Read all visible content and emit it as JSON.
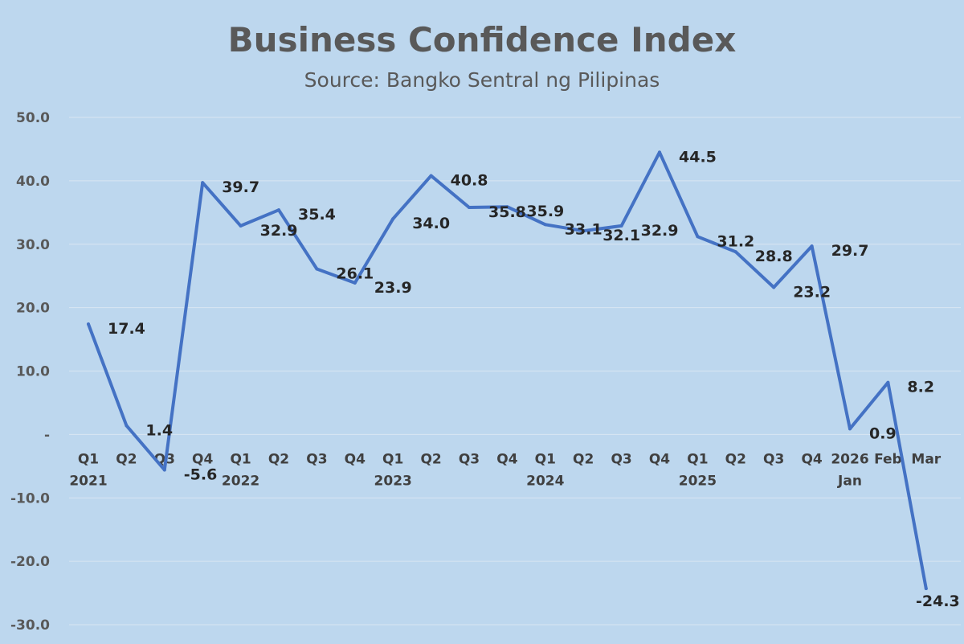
{
  "chart_data": {
    "type": "line",
    "title": "Business Confidence Index",
    "subtitle": "Source: Bangko Sentral ng Pilipinas",
    "xlabel": "",
    "ylabel": "",
    "ylim": [
      -30,
      50
    ],
    "y_ticks": [
      "50.0",
      "40.0",
      "30.0",
      "20.0",
      "10.0",
      "-",
      "-10.0",
      "-20.0",
      "-30.0"
    ],
    "grid": true,
    "legend": "none",
    "categories": [
      {
        "top": "Q1",
        "bottom": "2021"
      },
      {
        "top": "Q2",
        "bottom": ""
      },
      {
        "top": "Q3",
        "bottom": ""
      },
      {
        "top": "Q4",
        "bottom": ""
      },
      {
        "top": "Q1",
        "bottom": "2022"
      },
      {
        "top": "Q2",
        "bottom": ""
      },
      {
        "top": "Q3",
        "bottom": ""
      },
      {
        "top": "Q4",
        "bottom": ""
      },
      {
        "top": "Q1",
        "bottom": "2023"
      },
      {
        "top": "Q2",
        "bottom": ""
      },
      {
        "top": "Q3",
        "bottom": ""
      },
      {
        "top": "Q4",
        "bottom": ""
      },
      {
        "top": "Q1",
        "bottom": "2024"
      },
      {
        "top": "Q2",
        "bottom": ""
      },
      {
        "top": "Q3",
        "bottom": ""
      },
      {
        "top": "Q4",
        "bottom": ""
      },
      {
        "top": "Q1",
        "bottom": "2025"
      },
      {
        "top": "Q2",
        "bottom": ""
      },
      {
        "top": "Q3",
        "bottom": ""
      },
      {
        "top": "Q4",
        "bottom": ""
      },
      {
        "top": "2026",
        "bottom": "Jan"
      },
      {
        "top": "Feb",
        "bottom": ""
      },
      {
        "top": "Mar",
        "bottom": ""
      }
    ],
    "series": [
      {
        "values": [
          17.4,
          1.4,
          -5.6,
          39.7,
          32.9,
          35.4,
          26.1,
          23.9,
          34.0,
          40.8,
          35.8,
          35.9,
          33.1,
          32.1,
          32.9,
          44.5,
          31.2,
          28.8,
          23.2,
          29.7,
          0.9,
          8.2,
          -24.3
        ],
        "labels": [
          "17.4",
          "1.4",
          "-5.6",
          "39.7",
          "32.9",
          "35.4",
          "26.1",
          "23.9",
          "34.0",
          "40.8",
          "35.8",
          "35.9",
          "33.1",
          "32.1",
          "32.9",
          "44.5",
          "31.2",
          "28.8",
          "23.2",
          "29.7",
          "0.9",
          "8.2",
          "-24.3"
        ],
        "color": "#4472c4"
      }
    ]
  }
}
